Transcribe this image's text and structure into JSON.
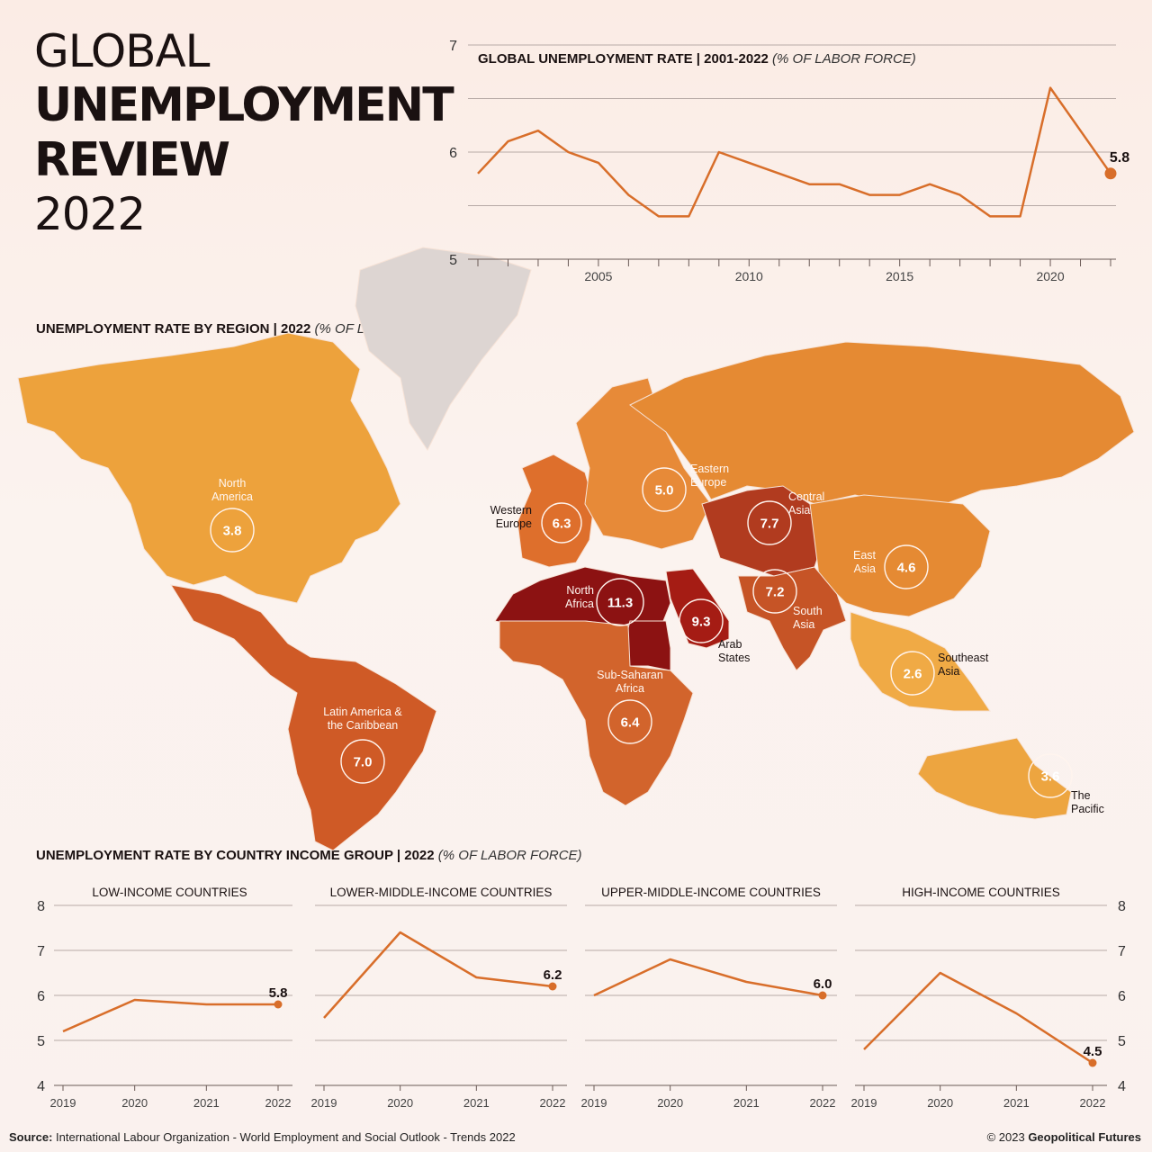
{
  "title": {
    "line1": "GLOBAL",
    "line2": "UNEMPLOYMENT",
    "line3": "REVIEW",
    "line4": "2022"
  },
  "colors": {
    "line": "#d86e2a",
    "grid": "#b7aaa6",
    "text": "#1a1111",
    "circle_border": "#fff4ee",
    "region_fills": {
      "north_america": "#eda23c",
      "latin_america": "#cf5a26",
      "western_europe": "#de6f2c",
      "eastern_europe": "#e78a38",
      "central_asia": "#b13b1f",
      "south_asia": "#c65426",
      "east_asia": "#e58a33",
      "southeast_asia": "#f0aa45",
      "pacific": "#eda540",
      "north_africa": "#8c1212",
      "arab_states": "#a51c14",
      "sub_saharan_africa": "#d2642c",
      "greenland": "#ddd5d2"
    }
  },
  "global_chart_label": {
    "main": "GLOBAL UNEMPLOYMENT RATE | 2001-2022",
    "unit": "(% OF LABOR FORCE)"
  },
  "region_section_label": {
    "main": "UNEMPLOYMENT RATE BY REGION | 2022",
    "unit": "(% OF LABOR FORCE)"
  },
  "income_section_label": {
    "main": "UNEMPLOYMENT RATE BY COUNTRY INCOME GROUP | 2022",
    "unit": "(% OF LABOR FORCE)"
  },
  "chart_data": [
    {
      "type": "line",
      "title": "GLOBAL UNEMPLOYMENT RATE | 2001-2022",
      "subtitle": "(% OF LABOR FORCE)",
      "x": [
        2001,
        2002,
        2003,
        2004,
        2005,
        2006,
        2007,
        2008,
        2009,
        2010,
        2011,
        2012,
        2013,
        2014,
        2015,
        2016,
        2017,
        2018,
        2019,
        2020,
        2021,
        2022
      ],
      "values": [
        5.8,
        6.1,
        6.2,
        6.0,
        5.9,
        5.6,
        5.4,
        5.4,
        6.0,
        5.9,
        5.8,
        5.7,
        5.7,
        5.6,
        5.6,
        5.7,
        5.6,
        5.4,
        5.4,
        6.6,
        6.2,
        5.8
      ],
      "ylim": [
        5,
        7
      ],
      "yticks": [
        "5",
        "6",
        "7"
      ],
      "xticks": [
        "2005",
        "2010",
        "2015",
        "2020"
      ],
      "xtick_values": [
        2005,
        2010,
        2015,
        2020
      ],
      "end_label": "5.8",
      "grid": true
    },
    {
      "type": "line",
      "title": "LOW-INCOME COUNTRIES",
      "x": [
        "2019",
        "2020",
        "2021",
        "2022"
      ],
      "values": [
        5.2,
        5.9,
        5.8,
        5.8
      ],
      "end_label": "5.8",
      "ylim": [
        4,
        8
      ],
      "yticks": [
        "4",
        "5",
        "6",
        "7",
        "8"
      ]
    },
    {
      "type": "line",
      "title": "LOWER-MIDDLE-INCOME COUNTRIES",
      "x": [
        "2019",
        "2020",
        "2021",
        "2022"
      ],
      "values": [
        5.5,
        7.4,
        6.4,
        6.2
      ],
      "end_label": "6.2",
      "ylim": [
        4,
        8
      ]
    },
    {
      "type": "line",
      "title": "UPPER-MIDDLE-INCOME COUNTRIES",
      "x": [
        "2019",
        "2020",
        "2021",
        "2022"
      ],
      "values": [
        6.0,
        6.8,
        6.3,
        6.0
      ],
      "end_label": "6.0",
      "ylim": [
        4,
        8
      ]
    },
    {
      "type": "line",
      "title": "HIGH-INCOME COUNTRIES",
      "x": [
        "2019",
        "2020",
        "2021",
        "2022"
      ],
      "values": [
        4.8,
        6.5,
        5.6,
        4.5
      ],
      "end_label": "4.5",
      "ylim": [
        4,
        8
      ],
      "yticks": [
        "4",
        "5",
        "6",
        "7",
        "8"
      ]
    }
  ],
  "regions": [
    {
      "key": "north_america",
      "name": "North\nAmerica",
      "value": "3.8"
    },
    {
      "key": "latin_america",
      "name": "Latin America &\nthe Caribbean",
      "value": "7.0"
    },
    {
      "key": "western_europe",
      "name": "Western\nEurope",
      "value": "6.3"
    },
    {
      "key": "eastern_europe",
      "name": "Eastern\nEurope",
      "value": "5.0"
    },
    {
      "key": "central_asia",
      "name": "Central\nAsia",
      "value": "7.7"
    },
    {
      "key": "east_asia",
      "name": "East\nAsia",
      "value": "4.6"
    },
    {
      "key": "south_asia",
      "name": "South\nAsia",
      "value": "7.2"
    },
    {
      "key": "north_africa",
      "name": "North\nAfrica",
      "value": "11.3"
    },
    {
      "key": "arab_states",
      "name": "Arab\nStates",
      "value": "9.3"
    },
    {
      "key": "sub_saharan_africa",
      "name": "Sub-Saharan\nAfrica",
      "value": "6.4"
    },
    {
      "key": "southeast_asia",
      "name": "Southeast\nAsia",
      "value": "2.6"
    },
    {
      "key": "pacific",
      "name": "The\nPacific",
      "value": "3.6"
    }
  ],
  "footer": {
    "source_label": "Source:",
    "source_text": " International Labour Organization - World Employment and Social Outlook - Trends 2022",
    "copyright_prefix": "© 2023 ",
    "copyright_brand": "Geopolitical Futures"
  }
}
